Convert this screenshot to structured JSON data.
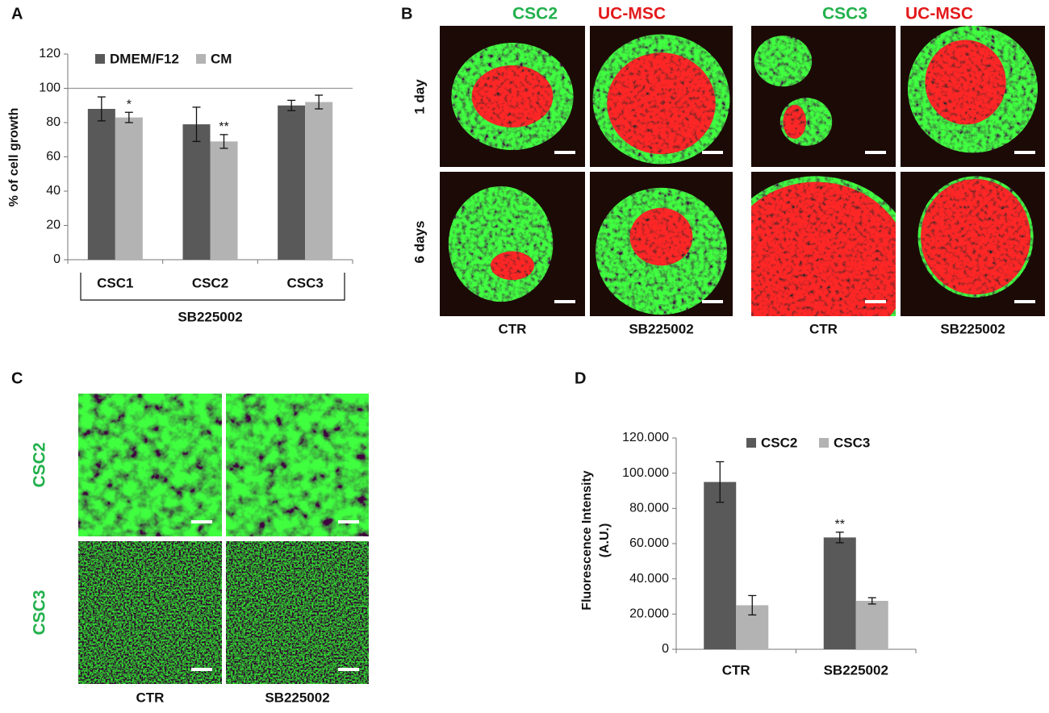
{
  "panel_labels": [
    "A",
    "B",
    "C",
    "D"
  ],
  "chart_data": [
    {
      "type": "bar",
      "ylabel": "% of cell growth",
      "categories": [
        "CSC1",
        "CSC2",
        "CSC3"
      ],
      "group_label": "SB225002",
      "series": [
        {
          "name": "DMEM/F12",
          "color": "#595959",
          "values": [
            88,
            79,
            90
          ],
          "errors": [
            7,
            10,
            3
          ]
        },
        {
          "name": "CM",
          "color": "#b3b3b3",
          "values": [
            83,
            69,
            92
          ],
          "errors": [
            3,
            4,
            4
          ]
        }
      ],
      "ylim": [
        0,
        120
      ],
      "yticks": [
        0,
        20,
        40,
        60,
        80,
        100,
        120
      ],
      "reference_line": 100,
      "legend": "top",
      "annotations": [
        {
          "text": "*",
          "series": 1,
          "index": 0
        },
        {
          "text": "**",
          "series": 1,
          "index": 1
        }
      ]
    },
    {
      "type": "bar",
      "ylabel": [
        "Fluorescence Intensity",
        "(A.U.)"
      ],
      "categories": [
        "CTR",
        "SB225002"
      ],
      "series": [
        {
          "name": "CSC2",
          "color": "#595959",
          "values": [
            95000,
            63500
          ],
          "errors": [
            11500,
            3000
          ]
        },
        {
          "name": "CSC3",
          "color": "#b3b3b3",
          "values": [
            25000,
            27500
          ],
          "errors": [
            5500,
            1800
          ]
        }
      ],
      "ylim": [
        0,
        120000
      ],
      "yticks": [
        0,
        {
          "value": 20000,
          "label": "20.000"
        },
        {
          "value": 40000,
          "label": "40.000"
        },
        {
          "value": 60000,
          "label": "60.000"
        },
        {
          "value": 80000,
          "label": "80.000"
        },
        {
          "value": 100000,
          "label": "100.000"
        },
        {
          "value": 120000,
          "label": "120.000"
        }
      ],
      "legend": "top",
      "annotations": [
        {
          "text": "**",
          "series": 0,
          "index": 1
        }
      ]
    }
  ],
  "panel_b": {
    "headers": [
      {
        "name": "CSC2",
        "color": "#22b14c"
      },
      {
        "name": "UC-MSC",
        "color": "#e31a1c"
      },
      {
        "name": "CSC3",
        "color": "#22b14c"
      },
      {
        "name": "UC-MSC",
        "color": "#e31a1c"
      }
    ],
    "rows": [
      "1 day",
      "6 days"
    ],
    "columns": [
      "CTR",
      "SB225002",
      "CTR",
      "SB225002"
    ]
  },
  "panel_c": {
    "rows": [
      {
        "name": "CSC2",
        "color": "#22b14c"
      },
      {
        "name": "CSC3",
        "color": "#22b14c"
      }
    ],
    "columns": [
      "CTR",
      "SB225002"
    ]
  }
}
